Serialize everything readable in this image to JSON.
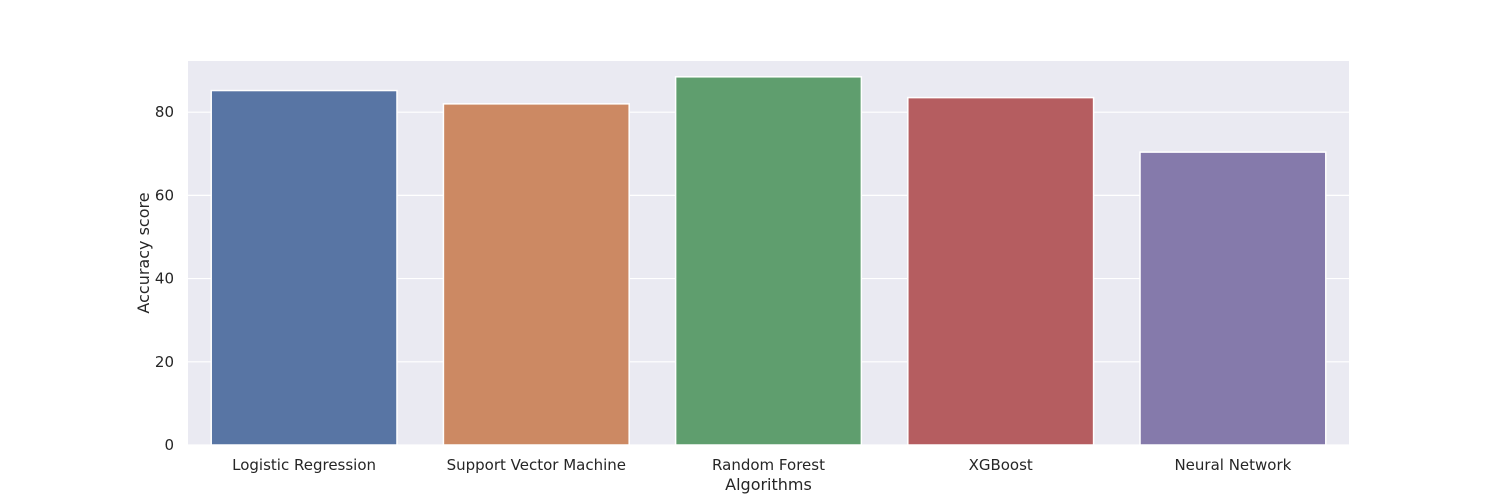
{
  "chart_data": {
    "type": "bar",
    "categories": [
      "Logistic Regression",
      "Support Vector Machine",
      "Random Forest",
      "XGBoost",
      "Neural Network"
    ],
    "values": [
      85.2,
      82.0,
      88.5,
      83.5,
      70.4
    ],
    "colors": [
      "#5875a4",
      "#cc8963",
      "#5f9e6e",
      "#b55d60",
      "#857aab"
    ],
    "title": "",
    "xlabel": "Algorithms",
    "ylabel": "Accuracy score",
    "ylim": [
      0,
      92.3
    ],
    "yticks": [
      0,
      20,
      40,
      60,
      80
    ],
    "grid": true,
    "grid_axis": "y",
    "legend": false,
    "plot_background": "#eaeaf2",
    "grid_color": "#ffffff"
  }
}
